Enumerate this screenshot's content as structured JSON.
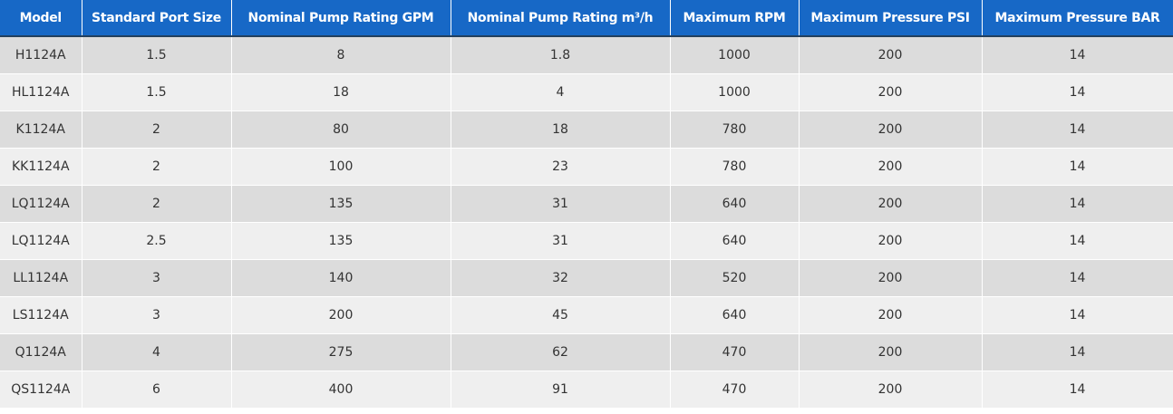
{
  "table": {
    "header": [
      "Model",
      "Standard Port Size",
      "Nominal Pump Rating GPM",
      "Nominal Pump Rating m³/h",
      "Maximum RPM",
      "Maximum Pressure PSI",
      "Maximum Pressure BAR"
    ],
    "rows": [
      [
        "H1124A",
        1.5,
        8,
        1.8,
        1000,
        200,
        14
      ],
      [
        "HL1124A",
        1.5,
        18,
        4,
        1000,
        200,
        14
      ],
      [
        "K1124A",
        2,
        80,
        18,
        780,
        200,
        14
      ],
      [
        "KK1124A",
        2,
        100,
        23,
        780,
        200,
        14
      ],
      [
        "LQ1124A",
        2,
        135,
        31,
        640,
        200,
        14
      ],
      [
        "LQ1124A",
        2.5,
        135,
        31,
        640,
        200,
        14
      ],
      [
        "LL1124A",
        3,
        140,
        32,
        520,
        200,
        14
      ],
      [
        "LS1124A",
        3,
        200,
        45,
        640,
        200,
        14
      ],
      [
        "Q1124A",
        4,
        275,
        62,
        470,
        200,
        14
      ],
      [
        "QS1124A",
        6,
        400,
        91,
        470,
        200,
        14
      ]
    ]
  }
}
